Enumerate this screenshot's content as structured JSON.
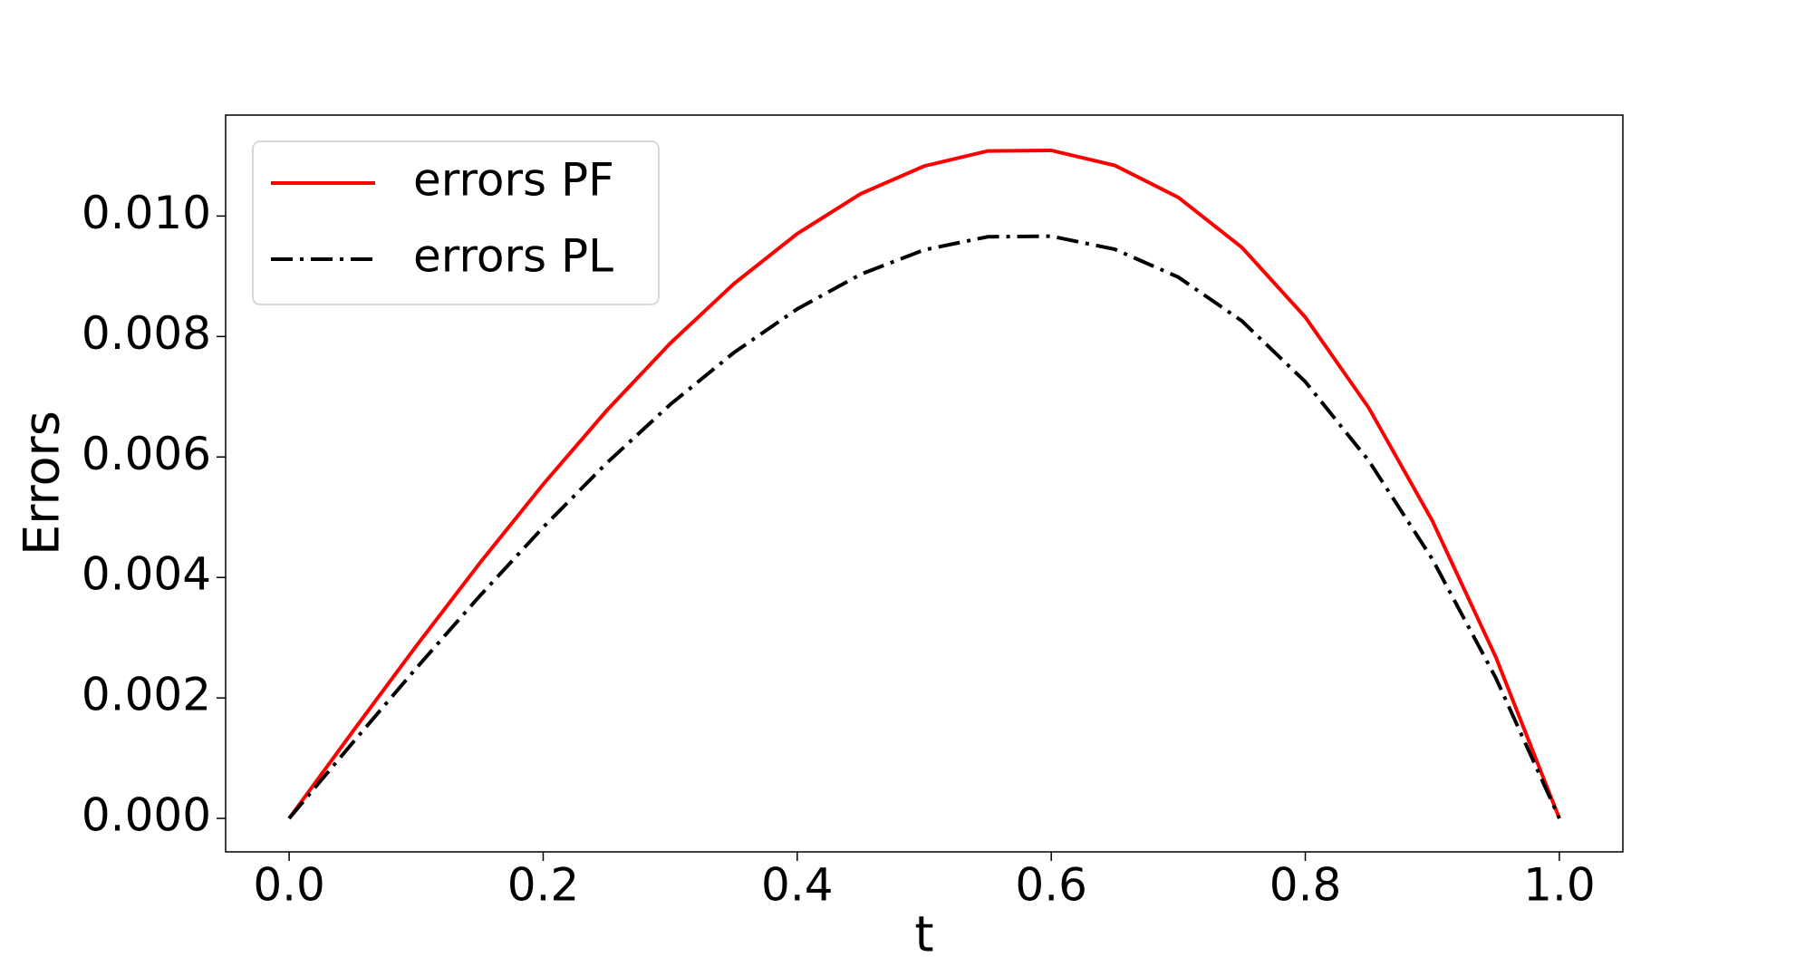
{
  "chart_data": {
    "type": "line",
    "xlabel": "t",
    "ylabel": "Errors",
    "x": [
      0,
      0.05,
      0.1,
      0.15,
      0.2,
      0.25,
      0.3,
      0.35,
      0.4,
      0.45,
      0.5,
      0.55,
      0.6,
      0.65,
      0.7,
      0.75,
      0.8,
      0.85,
      0.9,
      0.95,
      1
    ],
    "series": [
      {
        "name": "errors PF",
        "color": "#ff0000",
        "dash": "solid",
        "values": [
          0,
          0.001441,
          0.00286,
          0.004236,
          0.005547,
          0.006771,
          0.007887,
          0.008873,
          0.009707,
          0.01037,
          0.01083,
          0.01108,
          0.01109,
          0.01084,
          0.01031,
          0.00948,
          0.00832,
          0.006814,
          0.00494,
          0.002676,
          0
        ]
      },
      {
        "name": "errors PL",
        "color": "#000000",
        "dash": "dashdot",
        "values": [
          0,
          0.001255,
          0.002492,
          0.003691,
          0.004833,
          0.005899,
          0.006871,
          0.00773,
          0.008457,
          0.009033,
          0.009439,
          0.009656,
          0.009665,
          0.009448,
          0.008986,
          0.008259,
          0.007249,
          0.005937,
          0.004304,
          0.002331,
          0
        ]
      }
    ],
    "xlim": [
      -0.05,
      1.05
    ],
    "xticks": [
      {
        "value": 0,
        "label": "0.0"
      },
      0.2,
      0.4,
      0.6,
      0.8,
      {
        "value": 1,
        "label": "1.0"
      }
    ],
    "ylim": [
      -0.000556,
      0.011676
    ],
    "yticks": [
      {
        "value": 0,
        "label": "0.000"
      },
      {
        "value": 0.002,
        "label": "0.002"
      },
      {
        "value": 0.004,
        "label": "0.004"
      },
      {
        "value": 0.006,
        "label": "0.006"
      },
      {
        "value": 0.008,
        "label": "0.008"
      },
      {
        "value": 0.01,
        "label": "0.010"
      }
    ],
    "legend": "upper left",
    "grid": false
  }
}
